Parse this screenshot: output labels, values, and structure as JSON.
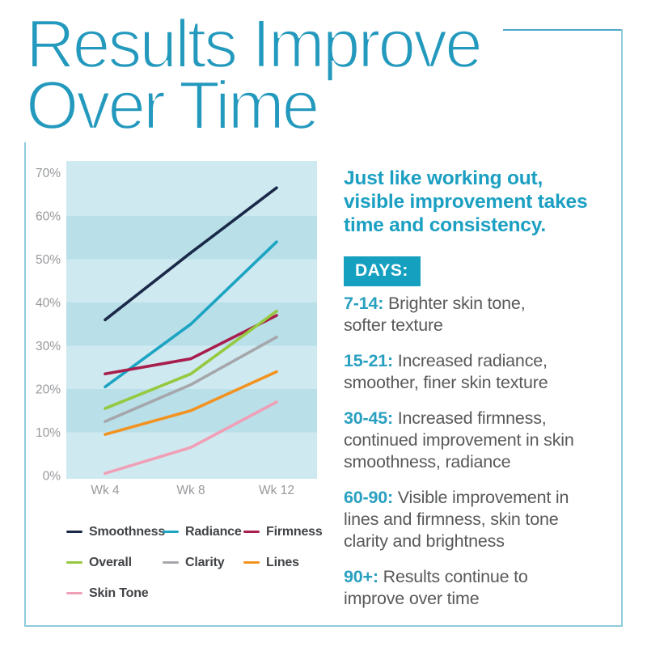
{
  "title": {
    "lines": [
      "Results Improve",
      "Over Time"
    ]
  },
  "panel": {
    "headline_lines": [
      "Just like working out,",
      "visible improvement takes",
      "time and consistency."
    ],
    "badge_label": "DAYS:",
    "timeline": [
      {
        "range": "7-14:",
        "lines": [
          "Brighter skin tone,",
          "softer texture"
        ]
      },
      {
        "range": "15-21:",
        "lines": [
          "Increased radiance,",
          "smoother, finer skin texture"
        ]
      },
      {
        "range": "30-45:",
        "lines": [
          "Increased firmness,",
          "continued improvement in skin",
          "smoothness, radiance"
        ]
      },
      {
        "range": "60-90:",
        "lines": [
          "Visible improvement in",
          "lines and firmness, skin tone",
          "clarity and brightness"
        ]
      },
      {
        "range": "90+:",
        "lines": [
          "Results continue to",
          "improve over time"
        ]
      }
    ]
  },
  "chart_data": {
    "type": "line",
    "title": "",
    "xlabel": "",
    "ylabel": "",
    "categories": [
      "Wk 4",
      "Wk 8",
      "Wk 12"
    ],
    "series": [
      {
        "name": "Smoothness",
        "color": "#1b2949",
        "values": [
          36,
          51.5,
          66.5
        ]
      },
      {
        "name": "Radiance",
        "color": "#1ca4c2",
        "values": [
          20.5,
          35,
          54
        ]
      },
      {
        "name": "Firmness",
        "color": "#a81e4c",
        "values": [
          23.5,
          27,
          37
        ]
      },
      {
        "name": "Overall",
        "color": "#95c93f",
        "values": [
          15.5,
          23.5,
          38
        ]
      },
      {
        "name": "Clarity",
        "color": "#a5a7aa",
        "values": [
          12.5,
          21,
          32
        ]
      },
      {
        "name": "Lines",
        "color": "#f2921f",
        "values": [
          9.5,
          15,
          24
        ]
      },
      {
        "name": "Skin Tone",
        "color": "#f0a0b6",
        "values": [
          0.5,
          6.5,
          17
        ]
      }
    ],
    "yticks": [
      "0%",
      "10%",
      "20%",
      "30%",
      "40%",
      "50%",
      "60%",
      "70%"
    ],
    "ylim": [
      0,
      72
    ],
    "grid": "horizontal-bands",
    "band_colors": [
      "#cfe9f1",
      "#b9dfe9"
    ],
    "legend_position": "below"
  },
  "colors": {
    "title_teal": "#2399bd",
    "accent_teal": "#1b9fc2",
    "badge_bg": "#16a0c0",
    "body_gray": "#58595b",
    "axis_gray": "#97999c",
    "legend_text": "#414347",
    "frame": "#8cccdb"
  }
}
